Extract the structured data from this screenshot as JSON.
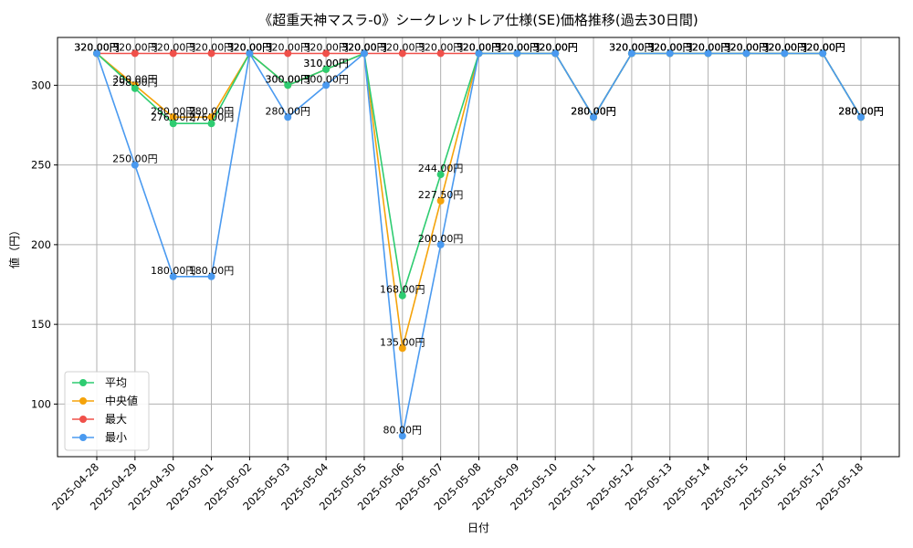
{
  "chart_data": {
    "type": "line",
    "title": "《超重天神マスラ-0》シークレットレア仕様(SE)価格推移(過去30日間)",
    "xlabel": "日付",
    "ylabel": "値（円）",
    "ylim": [
      67,
      330
    ],
    "yticks": [
      100,
      150,
      200,
      250,
      300
    ],
    "grid": true,
    "legend_position": "lower-left",
    "x": [
      "2025-04-28",
      "2025-04-29",
      "2025-04-30",
      "2025-05-01",
      "2025-05-02",
      "2025-05-03",
      "2025-05-04",
      "2025-05-05",
      "2025-05-06",
      "2025-05-07",
      "2025-05-08",
      "2025-05-09",
      "2025-05-10",
      "2025-05-11",
      "2025-05-12",
      "2025-05-13",
      "2025-05-14",
      "2025-05-15",
      "2025-05-16",
      "2025-05-17",
      "2025-05-18"
    ],
    "series": [
      {
        "name": "平均",
        "color": "#2ecc71",
        "values": [
          320,
          298,
          276,
          276,
          320,
          300,
          310,
          320,
          168,
          244,
          320,
          320,
          320,
          280,
          320,
          320,
          320,
          320,
          320,
          320,
          280
        ],
        "labels": [
          "320.00円",
          "298.00円",
          "276.00円",
          "276.00円",
          "320.00円",
          "300.00円",
          "310.00円",
          "320.00円",
          "168.00円",
          "244.00円",
          "320.00円",
          "320.00円",
          "320.00円",
          "280.00円",
          "320.00円",
          "320.00円",
          "320.00円",
          "320.00円",
          "320.00円",
          "320.00円",
          "280.00円"
        ]
      },
      {
        "name": "中央値",
        "color": "#f5a30a",
        "values": [
          320,
          300,
          280,
          280,
          320,
          300,
          310,
          320,
          135,
          227.5,
          320,
          320,
          320,
          280,
          320,
          320,
          320,
          320,
          320,
          320,
          280
        ],
        "labels": [
          "320.00円",
          "300.00円",
          "280.00円",
          "280.00円",
          "320.00円",
          "300.00円",
          "310.00円",
          "320.00円",
          "135.00円",
          "227.50円",
          "320.00円",
          "320.00円",
          "320.00円",
          "280.00円",
          "320.00円",
          "320.00円",
          "320.00円",
          "320.00円",
          "320.00円",
          "320.00円",
          "280.00円"
        ]
      },
      {
        "name": "最大",
        "color": "#f0504a",
        "values": [
          320,
          320,
          320,
          320,
          320,
          320,
          320,
          320,
          320,
          320,
          320,
          320,
          320,
          280,
          320,
          320,
          320,
          320,
          320,
          320,
          280
        ],
        "labels": [
          "320.00円",
          "320.00円",
          "320.00円",
          "320.00円",
          "320.00円",
          "320.00円",
          "320.00円",
          "320.00円",
          "320.00円",
          "320.00円",
          "320.00円",
          "320.00円",
          "320.00円",
          "280.00円",
          "320.00円",
          "320.00円",
          "320.00円",
          "320.00円",
          "320.00円",
          "320.00円",
          "280.00円"
        ]
      },
      {
        "name": "最小",
        "color": "#4a9af0",
        "values": [
          320,
          250,
          180,
          180,
          320,
          280,
          300,
          320,
          80,
          200,
          320,
          320,
          320,
          280,
          320,
          320,
          320,
          320,
          320,
          320,
          280
        ],
        "labels": [
          "320.00円",
          "250.00円",
          "180.00円",
          "180.00円",
          "320.00円",
          "280.00円",
          "300.00円",
          "320.00円",
          "80.00円",
          "200.00円",
          "320.00円",
          "320.00円",
          "320.00円",
          "280.00円",
          "320.00円",
          "320.00円",
          "320.00円",
          "320.00円",
          "320.00円",
          "320.00円",
          "280.00円"
        ]
      }
    ]
  }
}
